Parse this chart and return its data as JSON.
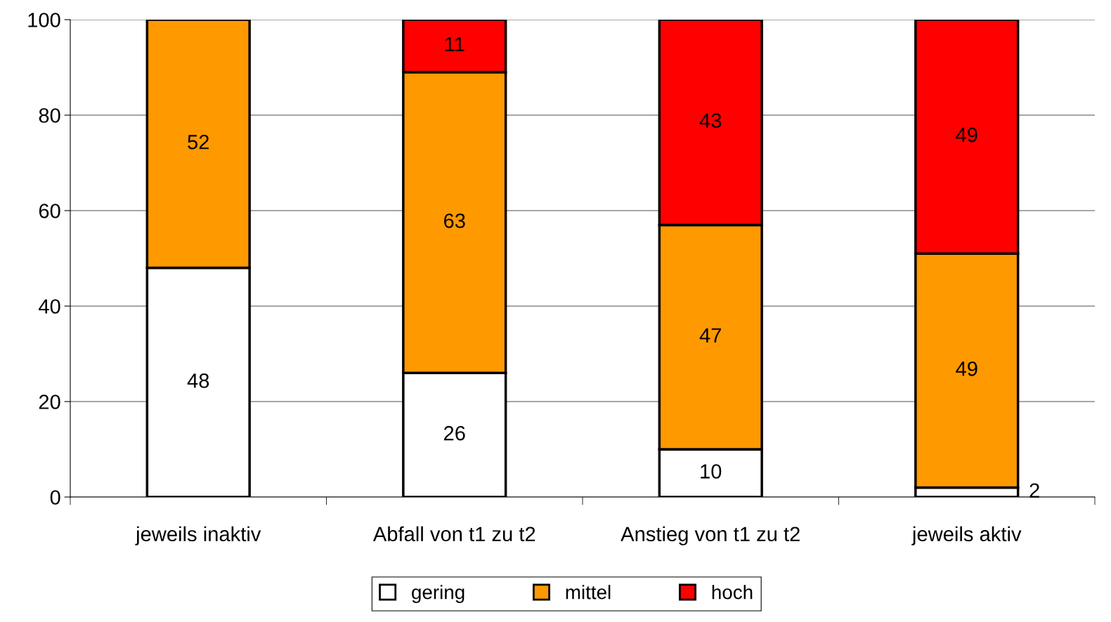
{
  "chart_data": {
    "type": "bar",
    "stacked": true,
    "categories": [
      "jeweils inaktiv",
      "Abfall von t1 zu t2",
      "Anstieg von t1 zu t2",
      "jeweils aktiv"
    ],
    "series": [
      {
        "name": "gering",
        "color": "#ffffff",
        "values": [
          48,
          26,
          10,
          2
        ]
      },
      {
        "name": "mittel",
        "color": "#ff9900",
        "values": [
          52,
          63,
          47,
          49
        ]
      },
      {
        "name": "hoch",
        "color": "#ff0000",
        "values": [
          null,
          11,
          43,
          49
        ]
      }
    ],
    "ylim": [
      0,
      100
    ],
    "yticks": [
      0,
      20,
      40,
      60,
      80,
      100
    ],
    "grid": "y",
    "legend": "bottom",
    "data_labels": true
  }
}
